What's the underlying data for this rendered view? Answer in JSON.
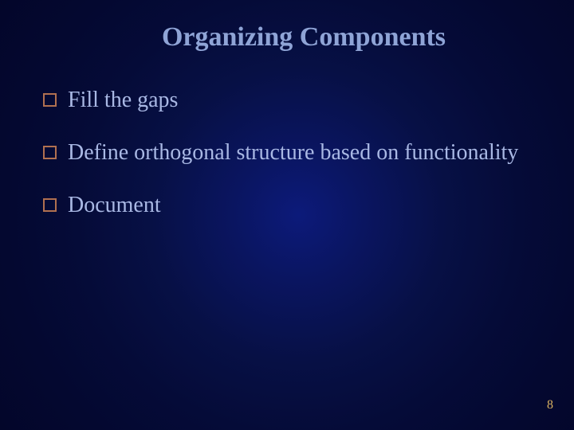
{
  "slide": {
    "title": "Organizing  Components",
    "title_color": "#8fa4d6",
    "title_fontsize": 34,
    "bullets": [
      {
        "text": "Fill the gaps"
      },
      {
        "text": "Define orthogonal structure based on functionality"
      },
      {
        "text": "Document"
      }
    ],
    "bullet_text_color": "#a9b8e4",
    "bullet_fontsize": 28,
    "bullet_box": {
      "size": 17,
      "border_width": 2,
      "border_color": "#b07050",
      "fill": "transparent"
    },
    "page_number": "8",
    "page_number_color": "#d8b060",
    "page_number_fontsize": 16,
    "background": {
      "center": "#0c1a7a",
      "edge": "#03062a"
    }
  }
}
